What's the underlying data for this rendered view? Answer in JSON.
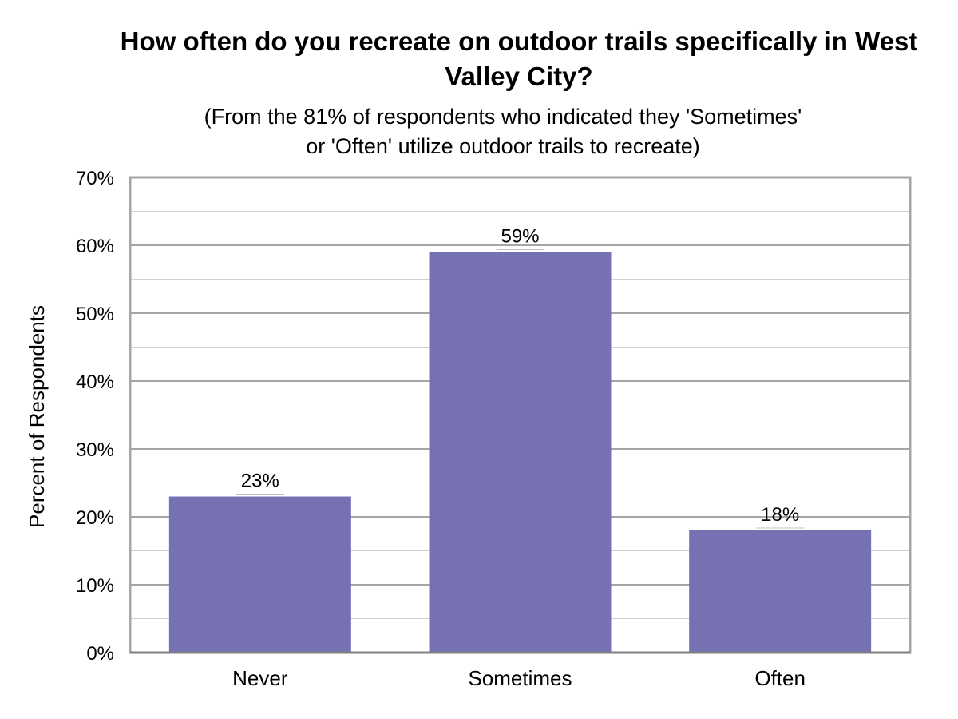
{
  "chart_data": {
    "type": "bar",
    "title": "How often do you recreate on outdoor trails specifically in West Valley City?",
    "subtitle_lines": [
      "(From the 81% of respondents who indicated they 'Sometimes'",
      "or 'Often' utilize outdoor trails to recreate)"
    ],
    "xlabel": "",
    "ylabel": "Percent of Respondents",
    "categories": [
      "Never",
      "Sometimes",
      "Often"
    ],
    "values": [
      23,
      59,
      18
    ],
    "data_labels": [
      "23%",
      "59%",
      "18%"
    ],
    "ylim": [
      0,
      70
    ],
    "major_ticks": [
      0,
      10,
      20,
      30,
      40,
      50,
      60,
      70
    ],
    "tick_labels": [
      "0%",
      "10%",
      "20%",
      "30%",
      "40%",
      "50%",
      "60%",
      "70%"
    ],
    "minor_step": 5,
    "grid": true,
    "legend": "none",
    "colors": {
      "bar": "#7571B3",
      "major_grid": "#A6A6A6",
      "minor_grid": "#D0D0D0",
      "frame": "#A6A6A6",
      "axis": "#808080"
    }
  }
}
